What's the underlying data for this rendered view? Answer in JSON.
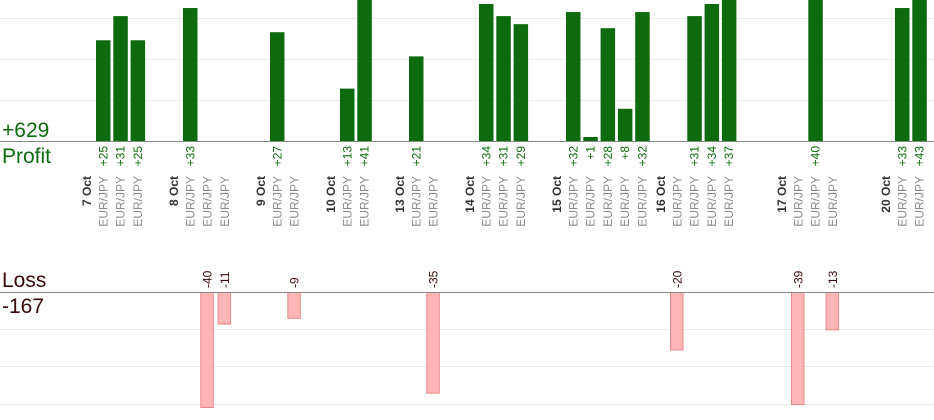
{
  "summary": {
    "profit_total": "+629",
    "profit_label": "Profit",
    "loss_label": "Loss",
    "loss_total": "-167"
  },
  "colors": {
    "profit_bar": "#0d6b0d",
    "profit_text": "#0d6b0d",
    "loss_bar": "#ffb5b5",
    "loss_bar_border": "#e88a8a",
    "loss_text": "#3a0a0a",
    "grid": "#ececec",
    "baseline": "#888888"
  },
  "chart_data": {
    "type": "bar",
    "profit_scale_max": 34,
    "loss_scale_max": 40,
    "grid": true,
    "days": [
      {
        "date": "7 Oct",
        "trades": [
          {
            "pair": "EUR/JPY",
            "value": 25,
            "label": "+25"
          },
          {
            "pair": "EUR/JPY",
            "value": 31,
            "label": "+31"
          },
          {
            "pair": "EUR/JPY",
            "value": 25,
            "label": "+25"
          }
        ]
      },
      {
        "date": "8 Oct",
        "trades": [
          {
            "pair": "EUR/JPY",
            "value": 33,
            "label": "+33"
          },
          {
            "pair": "EUR/JPY",
            "value": -40,
            "label": "-40"
          },
          {
            "pair": "EUR/JPY",
            "value": -11,
            "label": "-11"
          }
        ]
      },
      {
        "date": "9 Oct",
        "trades": [
          {
            "pair": "EUR/JPY",
            "value": 27,
            "label": "+27"
          },
          {
            "pair": "EUR/JPY",
            "value": -9,
            "label": "-9"
          }
        ]
      },
      {
        "date": "10 Oct",
        "trades": [
          {
            "pair": "EUR/JPY",
            "value": 13,
            "label": "+13"
          },
          {
            "pair": "EUR/JPY",
            "value": 41,
            "label": "+41"
          }
        ]
      },
      {
        "date": "13 Oct",
        "trades": [
          {
            "pair": "EUR/JPY",
            "value": 21,
            "label": "+21"
          },
          {
            "pair": "EUR/JPY",
            "value": -35,
            "label": "-35"
          }
        ]
      },
      {
        "date": "14 Oct",
        "trades": [
          {
            "pair": "EUR/JPY",
            "value": 34,
            "label": "+34"
          },
          {
            "pair": "EUR/JPY",
            "value": 31,
            "label": "+31"
          },
          {
            "pair": "EUR/JPY",
            "value": 29,
            "label": "+29"
          }
        ]
      },
      {
        "date": "15 Oct",
        "trades": [
          {
            "pair": "EUR/JPY",
            "value": 32,
            "label": "+32"
          },
          {
            "pair": "EUR/JPY",
            "value": 1,
            "label": "+1"
          },
          {
            "pair": "EUR/JPY",
            "value": 28,
            "label": "+28"
          },
          {
            "pair": "EUR/JPY",
            "value": 8,
            "label": "+8"
          },
          {
            "pair": "EUR/JPY",
            "value": 32,
            "label": "+32"
          }
        ]
      },
      {
        "date": "16 Oct",
        "trades": [
          {
            "pair": "EUR/JPY",
            "value": -20,
            "label": "-20"
          },
          {
            "pair": "EUR/JPY",
            "value": 31,
            "label": "+31"
          },
          {
            "pair": "EUR/JPY",
            "value": 34,
            "label": "+34"
          },
          {
            "pair": "EUR/JPY",
            "value": 37,
            "label": "+37"
          }
        ]
      },
      {
        "date": "17 Oct",
        "trades": [
          {
            "pair": "EUR/JPY",
            "value": -39,
            "label": "-39"
          },
          {
            "pair": "EUR/JPY",
            "value": 40,
            "label": "+40"
          },
          {
            "pair": "EUR/JPY",
            "value": -13,
            "label": "-13"
          }
        ]
      },
      {
        "date": "20 Oct",
        "trades": [
          {
            "pair": "EUR/JPY",
            "value": 33,
            "label": "+33"
          },
          {
            "pair": "EUR/JPY",
            "value": 43,
            "label": "+43"
          }
        ]
      }
    ]
  }
}
